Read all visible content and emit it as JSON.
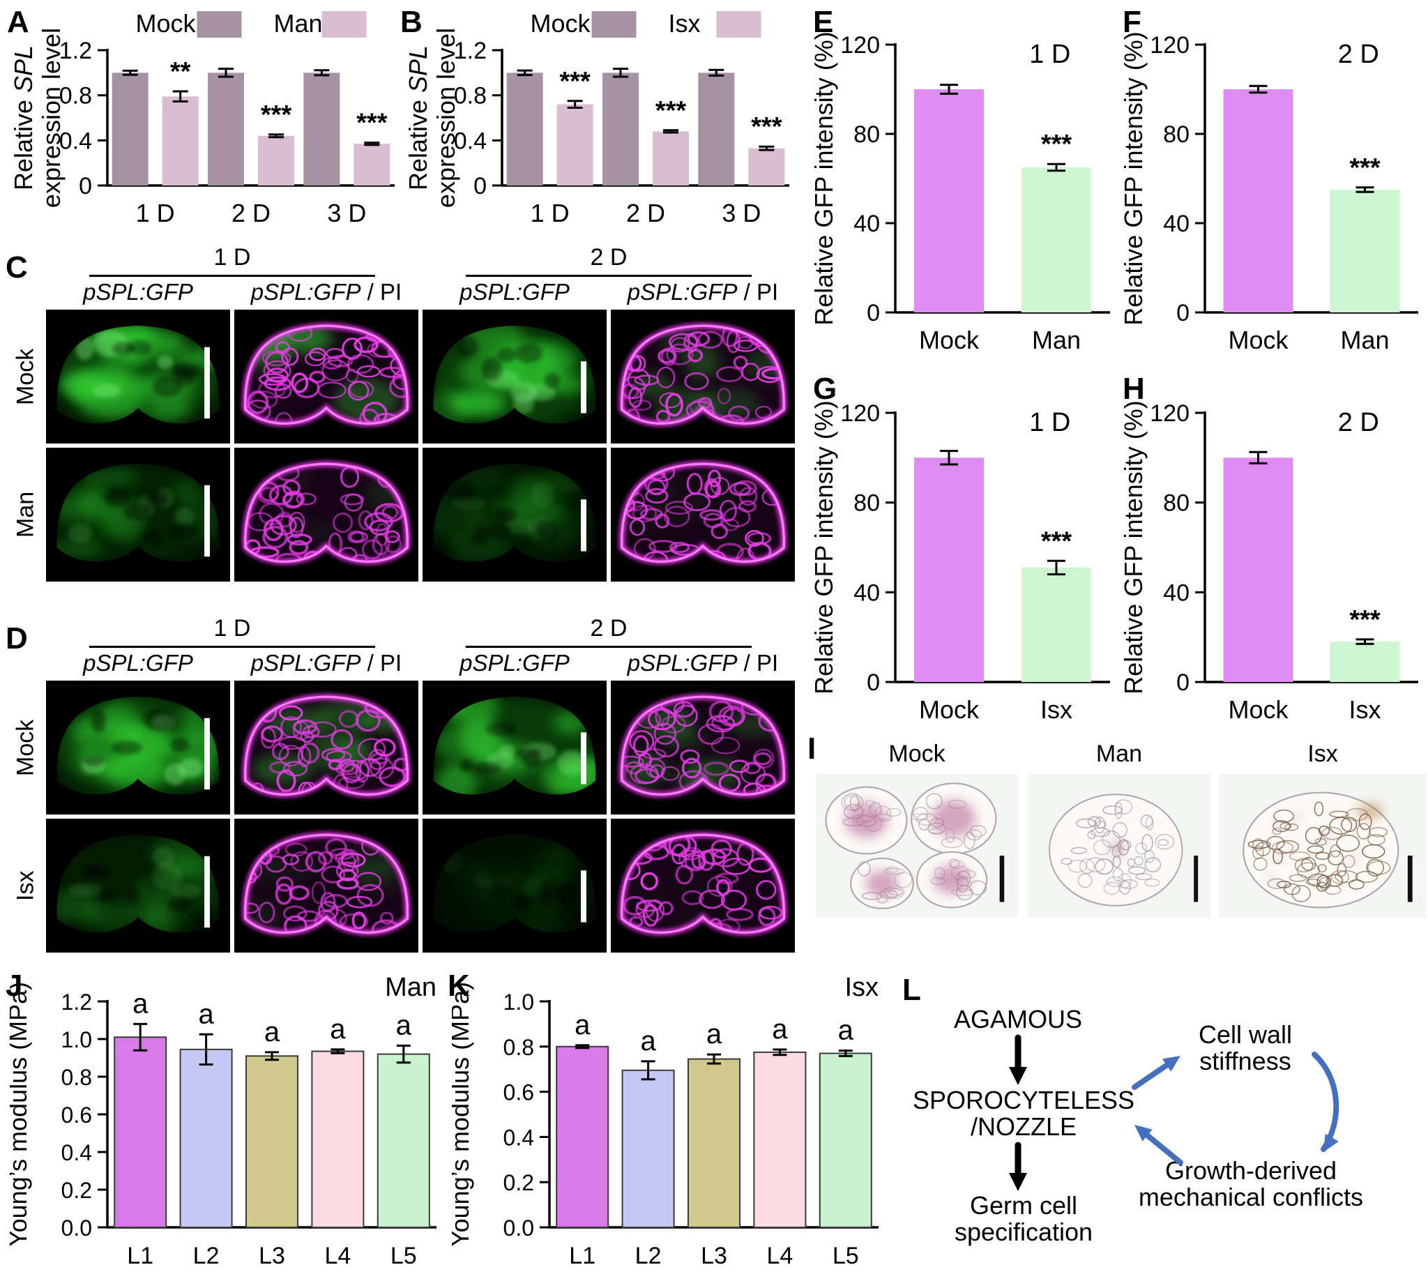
{
  "labels": {
    "A": "A",
    "B": "B",
    "C": "C",
    "D": "D",
    "E": "E",
    "F": "F",
    "G": "G",
    "H": "H",
    "I": "I",
    "J": "J",
    "K": "K",
    "L": "L"
  },
  "chart_data": [
    {
      "id": "A",
      "type": "bar",
      "grouped": true,
      "ylabel_lines": [
        [
          {
            "t": "Relative "
          },
          {
            "t": "SPL",
            "i": true
          }
        ],
        [
          {
            "t": "expression level"
          }
        ]
      ],
      "ylim": [
        0,
        1.2
      ],
      "yticks": [
        {
          "v": 1.2,
          "l": "1.2"
        },
        {
          "v": 0.8,
          "l": "0.8"
        },
        {
          "v": 0.4,
          "l": "0.4"
        },
        {
          "v": 0,
          "l": "0"
        }
      ],
      "categories": [
        "1 D",
        "2 D",
        "3 D"
      ],
      "legend": [
        {
          "label": "Mock",
          "color": "#a593a4"
        },
        {
          "label": "Man",
          "color": "#d9bdd1"
        }
      ],
      "series": [
        {
          "name": "Mock",
          "color": "#a593a4",
          "values": [
            1.0,
            1.0,
            1.0
          ],
          "errors": [
            0.018,
            0.035,
            0.022
          ],
          "sig": [
            "",
            "",
            ""
          ]
        },
        {
          "name": "Man",
          "color": "#d9bdd1",
          "values": [
            0.79,
            0.44,
            0.37
          ],
          "errors": [
            0.045,
            0.012,
            0.01
          ],
          "sig": [
            "**",
            "***",
            "***"
          ]
        }
      ]
    },
    {
      "id": "B",
      "type": "bar",
      "grouped": true,
      "ylabel_lines": [
        [
          {
            "t": "Relative "
          },
          {
            "t": "SPL",
            "i": true
          }
        ],
        [
          {
            "t": "expression level"
          }
        ]
      ],
      "ylim": [
        0,
        1.2
      ],
      "yticks": [
        {
          "v": 1.2,
          "l": "1.2"
        },
        {
          "v": 0.8,
          "l": "0.8"
        },
        {
          "v": 0.4,
          "l": "0.4"
        },
        {
          "v": 0,
          "l": "0"
        }
      ],
      "categories": [
        "1 D",
        "2 D",
        "3 D"
      ],
      "legend": [
        {
          "label": "Mock",
          "color": "#a593a4"
        },
        {
          "label": "Isx",
          "color": "#d9bdd1"
        }
      ],
      "series": [
        {
          "name": "Mock",
          "color": "#a593a4",
          "values": [
            1.0,
            1.0,
            1.0
          ],
          "errors": [
            0.02,
            0.035,
            0.025
          ],
          "sig": [
            "",
            "",
            ""
          ]
        },
        {
          "name": "Isx",
          "color": "#d9bdd1",
          "values": [
            0.72,
            0.48,
            0.33
          ],
          "errors": [
            0.03,
            0.01,
            0.015
          ],
          "sig": [
            "***",
            "***",
            "***"
          ]
        }
      ]
    },
    {
      "id": "E",
      "type": "bar",
      "title": "1 D",
      "ylabel_lines": [
        [
          {
            "t": "Relative GFP intensity (%)"
          }
        ]
      ],
      "ylim": [
        0,
        120
      ],
      "yticks": [
        {
          "v": 120,
          "l": "120"
        },
        {
          "v": 80,
          "l": "80"
        },
        {
          "v": 40,
          "l": "40"
        },
        {
          "v": 0,
          "l": "0"
        }
      ],
      "categories": [
        "Mock",
        "Man"
      ],
      "bars": [
        {
          "label": "Mock",
          "color": "#df8cf0",
          "value": 100,
          "err": 2,
          "sig": ""
        },
        {
          "label": "Man",
          "color": "#cdf6d1",
          "value": 65,
          "err": 1.5,
          "sig": "***"
        }
      ]
    },
    {
      "id": "F",
      "type": "bar",
      "title": "2 D",
      "ylabel_lines": [
        [
          {
            "t": "Relative GFP intensity (%)"
          }
        ]
      ],
      "ylim": [
        0,
        120
      ],
      "yticks": [
        {
          "v": 120,
          "l": "120"
        },
        {
          "v": 80,
          "l": "80"
        },
        {
          "v": 40,
          "l": "40"
        },
        {
          "v": 0,
          "l": "0"
        }
      ],
      "categories": [
        "Mock",
        "Man"
      ],
      "bars": [
        {
          "label": "Mock",
          "color": "#df8cf0",
          "value": 100,
          "err": 1.5,
          "sig": ""
        },
        {
          "label": "Man",
          "color": "#cdf6d1",
          "value": 55,
          "err": 1,
          "sig": "***"
        }
      ]
    },
    {
      "id": "G",
      "type": "bar",
      "title": "1 D",
      "ylabel_lines": [
        [
          {
            "t": "Relative GFP intensity (%)"
          }
        ]
      ],
      "ylim": [
        0,
        120
      ],
      "yticks": [
        {
          "v": 120,
          "l": "120"
        },
        {
          "v": 80,
          "l": "80"
        },
        {
          "v": 40,
          "l": "40"
        },
        {
          "v": 0,
          "l": "0"
        }
      ],
      "categories": [
        "Mock",
        "Isx"
      ],
      "bars": [
        {
          "label": "Mock",
          "color": "#df8cf0",
          "value": 100,
          "err": 3,
          "sig": ""
        },
        {
          "label": "Isx",
          "color": "#cdf6d1",
          "value": 51,
          "err": 3,
          "sig": "***"
        }
      ]
    },
    {
      "id": "H",
      "type": "bar",
      "title": "2 D",
      "ylabel_lines": [
        [
          {
            "t": "Relative GFP intensity (%)"
          }
        ]
      ],
      "ylim": [
        0,
        120
      ],
      "yticks": [
        {
          "v": 120,
          "l": "120"
        },
        {
          "v": 80,
          "l": "80"
        },
        {
          "v": 40,
          "l": "40"
        },
        {
          "v": 0,
          "l": "0"
        }
      ],
      "categories": [
        "Mock",
        "Isx"
      ],
      "bars": [
        {
          "label": "Mock",
          "color": "#df8cf0",
          "value": 100,
          "err": 2.5,
          "sig": ""
        },
        {
          "label": "Isx",
          "color": "#cdf6d1",
          "value": 18,
          "err": 1,
          "sig": "***"
        }
      ]
    },
    {
      "id": "J",
      "type": "bar",
      "title": "Man",
      "outline": true,
      "ylabel_lines": [
        [
          {
            "t": "Young’s modulus (MPa)"
          }
        ]
      ],
      "ylim": [
        0,
        1.2
      ],
      "yticks": [
        {
          "v": 1.2,
          "l": "1.2"
        },
        {
          "v": 1.0,
          "l": "1.0"
        },
        {
          "v": 0.8,
          "l": "0.8"
        },
        {
          "v": 0.6,
          "l": "0.6"
        },
        {
          "v": 0.4,
          "l": "0.4"
        },
        {
          "v": 0.2,
          "l": "0.2"
        },
        {
          "v": 0,
          "l": "0.0"
        }
      ],
      "categories": [
        "L1",
        "L2",
        "L3",
        "L4",
        "L5"
      ],
      "bars": [
        {
          "label": "L1",
          "color": "#d77be8",
          "value": 1.01,
          "err": 0.07,
          "sig": "a"
        },
        {
          "label": "L2",
          "color": "#c6c8f6",
          "value": 0.945,
          "err": 0.08,
          "sig": "a"
        },
        {
          "label": "L3",
          "color": "#d0ca8e",
          "value": 0.91,
          "err": 0.02,
          "sig": "a"
        },
        {
          "label": "L4",
          "color": "#fbdce1",
          "value": 0.935,
          "err": 0.01,
          "sig": "a"
        },
        {
          "label": "L5",
          "color": "#c9f3cf",
          "value": 0.92,
          "err": 0.045,
          "sig": "a"
        }
      ]
    },
    {
      "id": "K",
      "type": "bar",
      "title": "Isx",
      "outline": true,
      "ylabel_lines": [
        [
          {
            "t": "Young’s modulus (MPa)"
          }
        ]
      ],
      "ylim": [
        0,
        1.0
      ],
      "yticks": [
        {
          "v": 1.0,
          "l": "1.0"
        },
        {
          "v": 0.8,
          "l": "0.8"
        },
        {
          "v": 0.6,
          "l": "0.6"
        },
        {
          "v": 0.4,
          "l": "0.4"
        },
        {
          "v": 0.2,
          "l": "0.2"
        },
        {
          "v": 0,
          "l": "0.0"
        }
      ],
      "categories": [
        "L1",
        "L2",
        "L3",
        "L4",
        "L5"
      ],
      "bars": [
        {
          "label": "L1",
          "color": "#d77be8",
          "value": 0.8,
          "err": 0.006,
          "sig": "a"
        },
        {
          "label": "L2",
          "color": "#c6c8f6",
          "value": 0.695,
          "err": 0.04,
          "sig": "a"
        },
        {
          "label": "L3",
          "color": "#d0ca8e",
          "value": 0.745,
          "err": 0.02,
          "sig": "a"
        },
        {
          "label": "L4",
          "color": "#fbdce1",
          "value": 0.775,
          "err": 0.012,
          "sig": "a"
        },
        {
          "label": "L5",
          "color": "#c9f3cf",
          "value": 0.77,
          "err": 0.012,
          "sig": "a"
        }
      ]
    }
  ],
  "microscopy": {
    "C": {
      "label": "C",
      "group_titles": [
        "1 D",
        "2 D"
      ],
      "col_label_gfp": [
        {
          "t": "pSPL:GFP",
          "i": true
        }
      ],
      "col_label_pi": [
        {
          "t": "pSPL:GFP",
          "i": true
        },
        {
          "t": " / PI"
        }
      ],
      "rows": [
        {
          "name": "Mock",
          "cells": [
            {
              "kind": "gfp",
              "signal": 0.95
            },
            {
              "kind": "pi",
              "gfp": 0.6
            },
            {
              "kind": "gfp",
              "signal": 0.85
            },
            {
              "kind": "pi",
              "gfp": 0.4
            }
          ]
        },
        {
          "name": "Man",
          "cells": [
            {
              "kind": "gfp",
              "signal": 0.35
            },
            {
              "kind": "pi",
              "gfp": 0.12
            },
            {
              "kind": "gfp",
              "signal": 0.22
            },
            {
              "kind": "pi",
              "gfp": 0.08
            }
          ]
        }
      ]
    },
    "D": {
      "label": "D",
      "group_titles": [
        "1 D",
        "2 D"
      ],
      "col_label_gfp": [
        {
          "t": "pSPL:GFP",
          "i": true
        }
      ],
      "col_label_pi": [
        {
          "t": "pSPL:GFP",
          "i": true
        },
        {
          "t": " / PI"
        }
      ],
      "rows": [
        {
          "name": "Mock",
          "cells": [
            {
              "kind": "gfp",
              "signal": 0.95
            },
            {
              "kind": "pi",
              "gfp": 0.55
            },
            {
              "kind": "gfp",
              "signal": 0.8
            },
            {
              "kind": "pi",
              "gfp": 0.45
            }
          ]
        },
        {
          "name": "Isx",
          "cells": [
            {
              "kind": "gfp",
              "signal": 0.3
            },
            {
              "kind": "pi",
              "gfp": 0.18
            },
            {
              "kind": "gfp",
              "signal": 0.1
            },
            {
              "kind": "pi",
              "gfp": 0.05
            }
          ]
        }
      ]
    }
  },
  "histology": {
    "label": "I",
    "items": [
      {
        "name": "Mock",
        "kind": "stained"
      },
      {
        "name": "Man",
        "kind": "faint"
      },
      {
        "name": "Isx",
        "kind": "brown"
      }
    ]
  },
  "diagram": {
    "label": "L",
    "agamous": "AGAMOUS",
    "spl_line1": "SPOROCYTELESS",
    "spl_line2": "/NOZZLE",
    "germ_line1": "Germ cell",
    "germ_line2": "specification",
    "wall_line1": "Cell wall",
    "wall_line2": "stiffness",
    "growth_line1": "Growth-derived",
    "growth_line2": "mechanical conflicts",
    "colors": {
      "black": "#000000",
      "red": "#d01414",
      "blue": "#2b6ccd",
      "arrow_blue": "#4470bd"
    }
  }
}
